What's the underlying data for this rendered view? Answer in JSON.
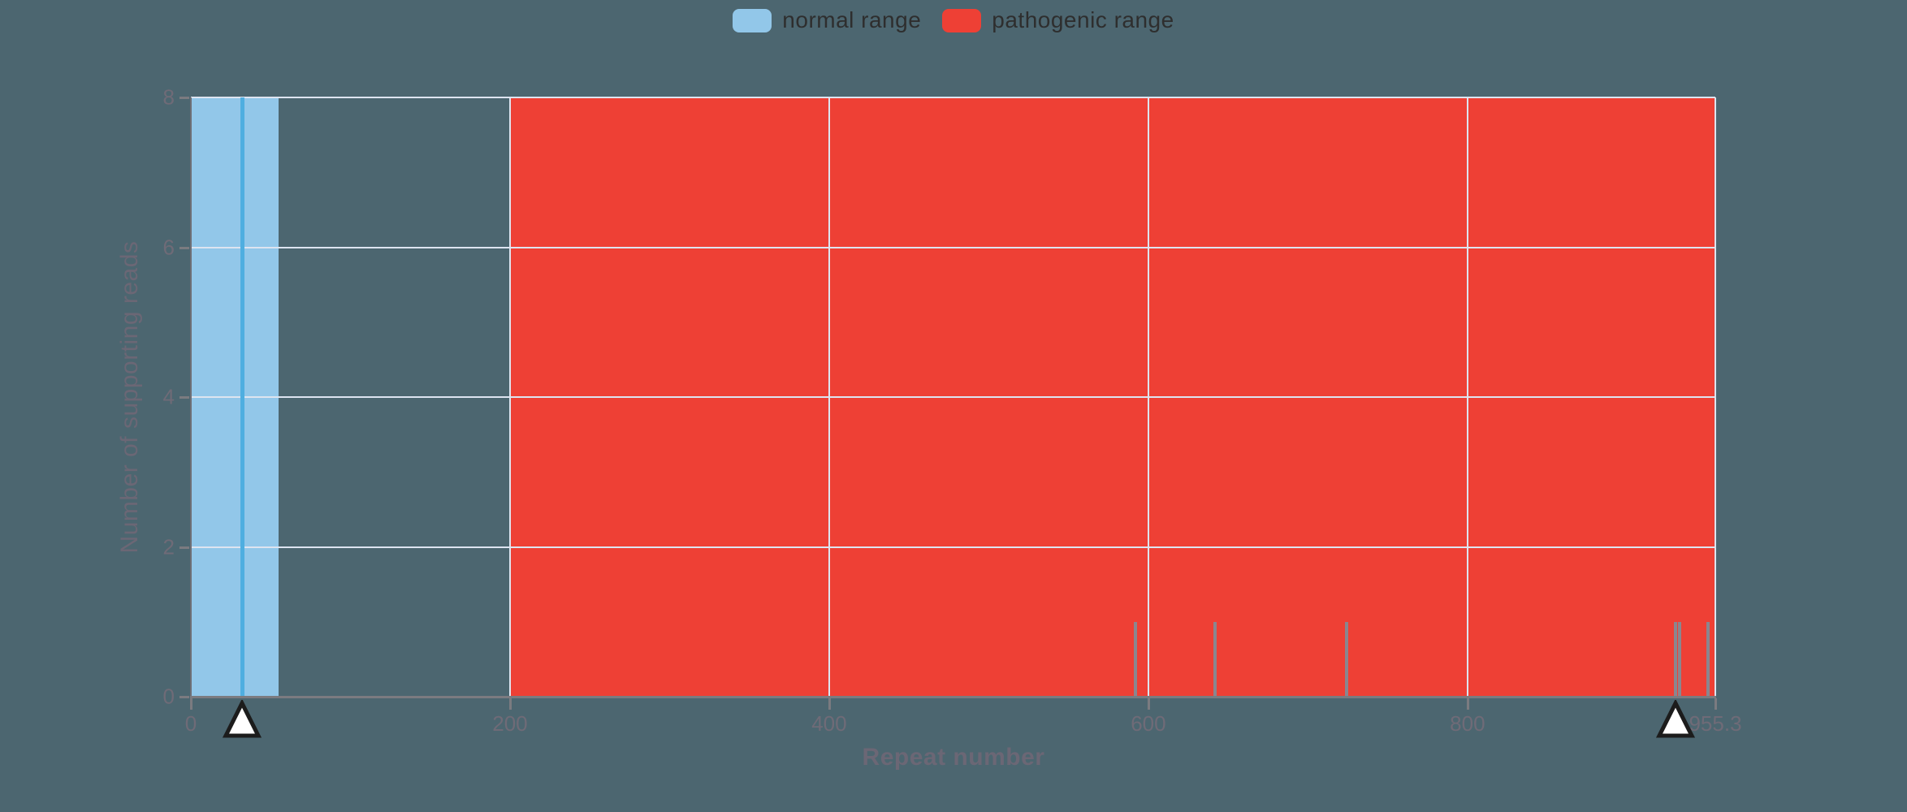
{
  "colors": {
    "background": "#4c6670",
    "normal_range": "#92c7e9",
    "pathogenic_range": "#ee4035",
    "allele_bar": "#4faee0",
    "read_bar": "#8a868f",
    "gridline": "#dde4f0",
    "axis": "#7b7b80",
    "tick_label": "#6f6b77",
    "axis_title": "#6b6775",
    "legend_text": "#2e2e2e",
    "marker_fill": "#ffffff",
    "marker_stroke": "#1c1c1c"
  },
  "legend": {
    "items": [
      {
        "label": "normal range",
        "color": "#92c7e9"
      },
      {
        "label": "pathogenic range",
        "color": "#ee4035"
      }
    ]
  },
  "chart_data": {
    "type": "bar",
    "title": "",
    "xlabel": "Repeat number",
    "ylabel": "Number of supporting reads",
    "xlim": [
      0,
      955.3
    ],
    "ylim": [
      0,
      8
    ],
    "grid": true,
    "legend_position": "top-center",
    "x_ticks": [
      {
        "value": 0,
        "label": "0"
      },
      {
        "value": 200,
        "label": "200"
      },
      {
        "value": 400,
        "label": "400"
      },
      {
        "value": 600,
        "label": "600"
      },
      {
        "value": 800,
        "label": "800"
      },
      {
        "value": 955.3,
        "label": "955.3"
      }
    ],
    "y_ticks": [
      {
        "value": 0,
        "label": "0"
      },
      {
        "value": 2,
        "label": "2"
      },
      {
        "value": 4,
        "label": "4"
      },
      {
        "value": 6,
        "label": "6"
      },
      {
        "value": 8,
        "label": "8"
      }
    ],
    "regions": [
      {
        "name": "normal range",
        "x0": 0,
        "x1": 55,
        "color": "#92c7e9"
      },
      {
        "name": "pathogenic range",
        "x0": 200,
        "x1": 955.3,
        "color": "#ee4035"
      }
    ],
    "bars": [
      {
        "repeat": 32.5,
        "reads": 8,
        "color": "#4faee0",
        "width": 5
      },
      {
        "repeat": 592,
        "reads": 1,
        "color": "#8a868f",
        "width": 4
      },
      {
        "repeat": 642,
        "reads": 1,
        "color": "#8a868f",
        "width": 4
      },
      {
        "repeat": 724,
        "reads": 1,
        "color": "#8a868f",
        "width": 4
      },
      {
        "repeat": 930.5,
        "reads": 1,
        "color": "#8a868f",
        "width": 4
      },
      {
        "repeat": 933,
        "reads": 1,
        "color": "#8a868f",
        "width": 4
      },
      {
        "repeat": 950.5,
        "reads": 1,
        "color": "#8a868f",
        "width": 4
      }
    ],
    "allele_markers": [
      {
        "repeat": 32
      },
      {
        "repeat": 930.5
      }
    ]
  }
}
